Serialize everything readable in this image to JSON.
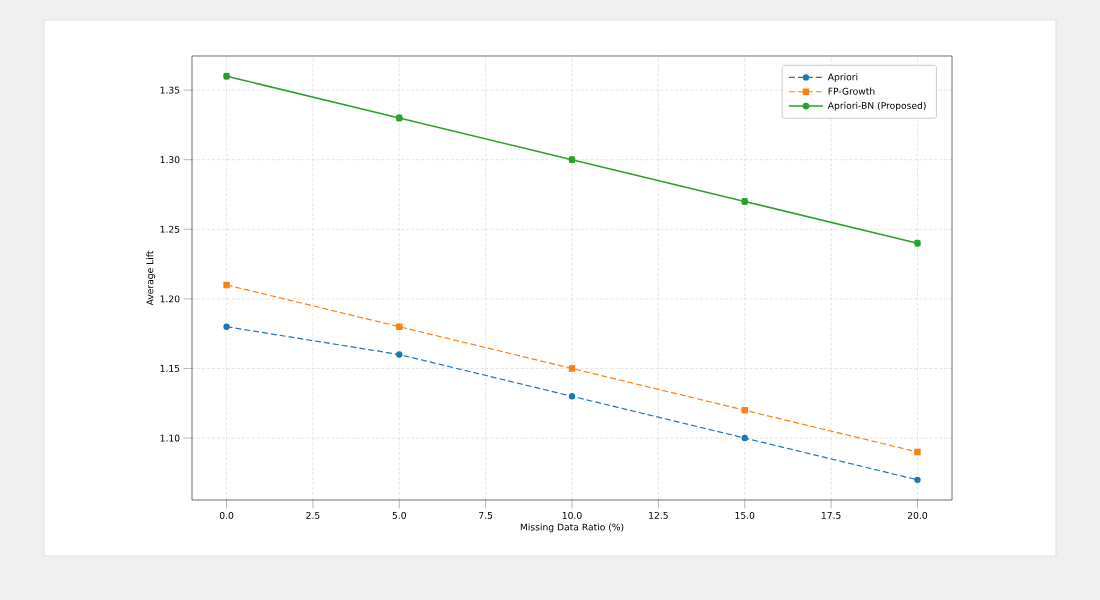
{
  "chart_data": {
    "type": "line",
    "xlabel": "Missing Data Ratio (%)",
    "ylabel": "Average Lift",
    "x": [
      0,
      5,
      10,
      15,
      20
    ],
    "series": [
      {
        "name": "Apriori",
        "color": "#1f77b4",
        "values": [
          1.18,
          1.16,
          1.13,
          1.1,
          1.07
        ],
        "marker": "circle",
        "line_style": "dashed"
      },
      {
        "name": "FP-Growth",
        "color": "#ff7f0e",
        "values": [
          1.21,
          1.18,
          1.15,
          1.12,
          1.09
        ],
        "marker": "square",
        "line_style": "dashed"
      },
      {
        "name": "Apriori-BN (Proposed)",
        "color": "#2ca02c",
        "values": [
          1.36,
          1.33,
          1.3,
          1.27,
          1.24
        ],
        "errors": [
          0.002,
          0.002,
          0.002,
          0.002,
          0.002
        ],
        "marker": "circle",
        "line_style": "solid"
      }
    ],
    "xlim": [
      -1,
      21
    ],
    "ylim": [
      1.0555,
      1.3745
    ],
    "xticks": [
      {
        "value": 0,
        "label": "0.0"
      },
      {
        "value": 2.5,
        "label": "2.5"
      },
      {
        "value": 5,
        "label": "5.0"
      },
      {
        "value": 7.5,
        "label": "7.5"
      },
      {
        "value": 10,
        "label": "10.0"
      },
      {
        "value": 12.5,
        "label": "12.5"
      },
      {
        "value": 15,
        "label": "15.0"
      },
      {
        "value": 17.5,
        "label": "17.5"
      },
      {
        "value": 20,
        "label": "20.0"
      }
    ],
    "yticks": [
      {
        "value": 1.1,
        "label": "1.10"
      },
      {
        "value": 1.15,
        "label": "1.15"
      },
      {
        "value": 1.2,
        "label": "1.20"
      },
      {
        "value": 1.25,
        "label": "1.25"
      },
      {
        "value": 1.3,
        "label": "1.30"
      },
      {
        "value": 1.35,
        "label": "1.35"
      }
    ],
    "grid": true,
    "legend": "top right"
  }
}
